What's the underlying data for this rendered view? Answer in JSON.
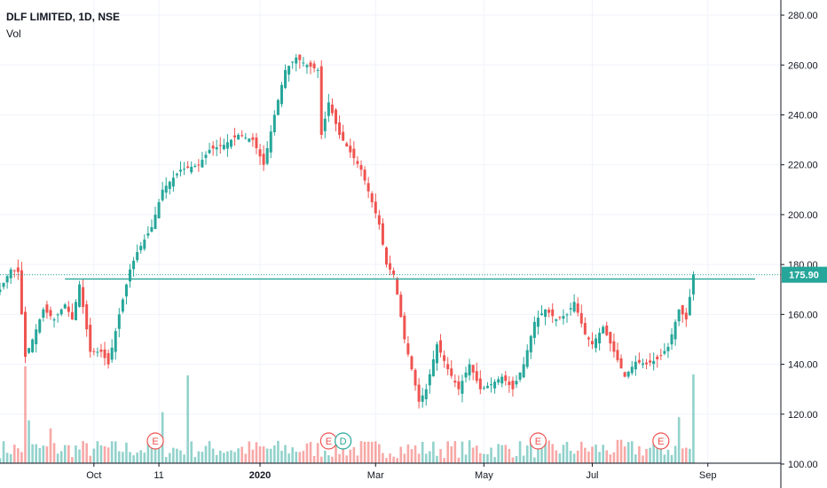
{
  "header": {
    "title": "DLF LIMITED, 1D, NSE",
    "volume_label": "Vol"
  },
  "colors": {
    "up": "#26a69a",
    "down": "#ef5350",
    "grid": "#f0f3fa",
    "axis": "#131722",
    "event_ring": "#ef5350",
    "dividend_ring": "#26a69a",
    "price_badge": "#26a69a"
  },
  "chart_data": {
    "type": "candlestick",
    "title": "DLF LIMITED, 1D, NSE",
    "ylim": [
      100,
      285
    ],
    "y_ticks": [
      "280.00",
      "260.00",
      "240.00",
      "220.00",
      "200.00",
      "180.00",
      "160.00",
      "140.00",
      "120.00",
      "100.00"
    ],
    "x_ticks": [
      {
        "label": "Oct",
        "bold": false,
        "index": 26
      },
      {
        "label": "11",
        "bold": false,
        "index": 44
      },
      {
        "label": "2020",
        "bold": true,
        "index": 72
      },
      {
        "label": "Mar",
        "bold": false,
        "index": 104
      },
      {
        "label": "May",
        "bold": false,
        "index": 134
      },
      {
        "label": "Jul",
        "bold": false,
        "index": 164
      },
      {
        "label": "Sep",
        "bold": false,
        "index": 196
      }
    ],
    "last_price": "175.90",
    "last_price_value": 175.9,
    "horizontal_line_value": 174.2,
    "markers": [
      {
        "label": "E",
        "type": "earnings",
        "index": 43
      },
      {
        "label": "E",
        "type": "earnings",
        "index": 91
      },
      {
        "label": "D",
        "type": "dividend",
        "index": 95
      },
      {
        "label": "E",
        "type": "earnings",
        "index": 149
      },
      {
        "label": "E",
        "type": "earnings",
        "index": 183
      }
    ],
    "keypoints": [
      [
        0,
        170
      ],
      [
        3,
        178
      ],
      [
        5,
        177
      ],
      [
        7,
        143
      ],
      [
        9,
        150
      ],
      [
        12,
        162
      ],
      [
        15,
        158
      ],
      [
        18,
        164
      ],
      [
        20,
        158
      ],
      [
        22,
        172
      ],
      [
        25,
        145
      ],
      [
        28,
        145
      ],
      [
        30,
        140
      ],
      [
        33,
        160
      ],
      [
        36,
        178
      ],
      [
        38,
        185
      ],
      [
        42,
        195
      ],
      [
        45,
        210
      ],
      [
        50,
        218
      ],
      [
        55,
        220
      ],
      [
        58,
        226
      ],
      [
        62,
        228
      ],
      [
        66,
        232
      ],
      [
        70,
        230
      ],
      [
        73,
        220
      ],
      [
        76,
        240
      ],
      [
        79,
        258
      ],
      [
        82,
        263
      ],
      [
        85,
        260
      ],
      [
        88,
        258
      ],
      [
        89,
        232
      ],
      [
        91,
        245
      ],
      [
        94,
        232
      ],
      [
        97,
        225
      ],
      [
        100,
        218
      ],
      [
        103,
        205
      ],
      [
        105,
        196
      ],
      [
        107,
        180
      ],
      [
        109,
        176
      ],
      [
        110,
        168
      ],
      [
        112,
        150
      ],
      [
        114,
        138
      ],
      [
        116,
        125
      ],
      [
        118,
        130
      ],
      [
        121,
        148
      ],
      [
        124,
        138
      ],
      [
        127,
        130
      ],
      [
        130,
        140
      ],
      [
        133,
        130
      ],
      [
        136,
        132
      ],
      [
        139,
        135
      ],
      [
        142,
        130
      ],
      [
        145,
        140
      ],
      [
        148,
        157
      ],
      [
        151,
        162
      ],
      [
        154,
        158
      ],
      [
        157,
        160
      ],
      [
        159,
        165
      ],
      [
        162,
        152
      ],
      [
        164,
        148
      ],
      [
        167,
        155
      ],
      [
        170,
        145
      ],
      [
        173,
        135
      ],
      [
        176,
        141
      ],
      [
        179,
        140
      ],
      [
        182,
        142
      ],
      [
        185,
        147
      ],
      [
        188,
        162
      ],
      [
        190,
        158
      ],
      [
        192,
        176
      ]
    ],
    "volume_spikes": [
      {
        "index": 7,
        "value": 0.95
      },
      {
        "index": 45,
        "value": 0.5
      },
      {
        "index": 52,
        "value": 0.86
      },
      {
        "index": 192,
        "value": 0.87
      },
      {
        "index": 188,
        "value": 0.45
      },
      {
        "index": 8,
        "value": 0.42
      },
      {
        "index": 14,
        "value": 0.34
      }
    ]
  }
}
